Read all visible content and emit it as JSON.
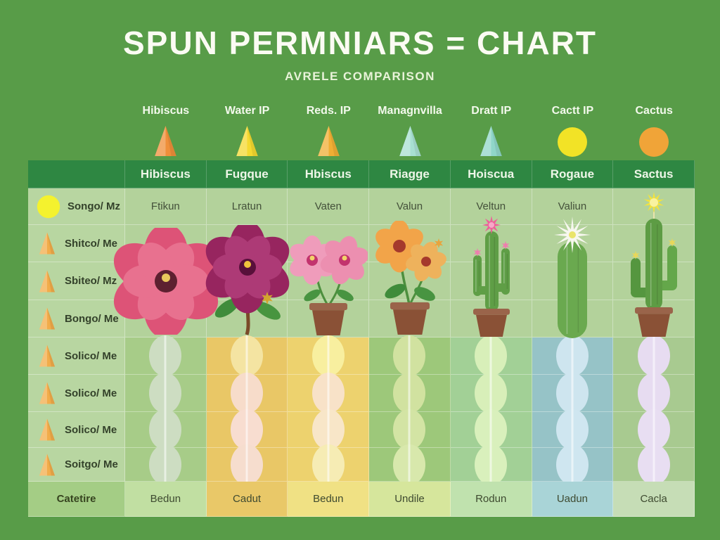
{
  "title": "SPUN PERMNIARS = CHART",
  "subtitle": "AVRELE COMPARISON",
  "footer_label": "Catetire",
  "colors": {
    "background": "#589c48",
    "header_row_green": "#2e8742",
    "cell_light_green": "#b3d29b",
    "label_cell_green": "#b8d6a1",
    "title_white": "#fbfbf3"
  },
  "left_rows": [
    {
      "icon": "yellow-circle-icon",
      "icon_color": "#f4f22e",
      "label": "Songo/ Mz"
    },
    {
      "icon": "orange-cone-icon",
      "icon_color": "#f2ac4a",
      "label": "Shitco/ Me"
    },
    {
      "icon": "orange-cone-icon",
      "icon_color": "#f2ac4a",
      "label": "Sbiteo/ Mz"
    },
    {
      "icon": "orange-cone-icon",
      "icon_color": "#f2ac4a",
      "label": "Bongo/ Me"
    },
    {
      "icon": "orange-cone-icon",
      "icon_color": "#f2ac4a",
      "label": "Solico/ Me"
    },
    {
      "icon": "orange-cone-icon",
      "icon_color": "#f2ac4a",
      "label": "Solico/ Me"
    },
    {
      "icon": "orange-cone-icon",
      "icon_color": "#f2ac4a",
      "label": "Solico/ Me"
    },
    {
      "icon": "orange-cone-icon",
      "icon_color": "#f2ac4a",
      "label": "Soitgo/ Me"
    }
  ],
  "columns": [
    {
      "top_label": "Hibiscus",
      "top_icon": {
        "shape": "cone",
        "color": "#ef8f3a"
      },
      "header": "Hibiscus",
      "value": "Ftikun",
      "plant": "pink-hibiscus-flower",
      "band_bg": "#a7cc88",
      "dots": [
        "#cdddc2",
        "#cdddc2",
        "#cdddc2",
        "#cdddc2"
      ],
      "footer": "Bedun",
      "footer_bg": "#c1dfa2"
    },
    {
      "top_label": "Water IP",
      "top_icon": {
        "shape": "cone",
        "color": "#f4d930"
      },
      "header": "Fugque",
      "value": "Lratun",
      "plant": "magenta-hibiscus-plant",
      "band_bg": "#e9c766",
      "dots": [
        "#f4e4a2",
        "#f7dcca",
        "#f8ddd0",
        "#f6ddce"
      ],
      "footer": "Cadut",
      "footer_bg": "#e9c868"
    },
    {
      "top_label": "Reds. IP",
      "top_icon": {
        "shape": "cone",
        "color": "#f0ae34"
      },
      "header": "Hbiscus",
      "value": "Vaten",
      "plant": "potted-pink-flowers",
      "band_bg": "#edd26e",
      "dots": [
        "#f8ef9f",
        "#f8e2c8",
        "#f8e6c8",
        "#f6ecb4"
      ],
      "footer": "Bedun",
      "footer_bg": "#f0e184"
    },
    {
      "top_label": "Managnvilla",
      "top_icon": {
        "shape": "cone",
        "color": "#a8dfd2"
      },
      "header": "Riagge",
      "value": "Valun",
      "plant": "potted-orange-flowers",
      "band_bg": "#9dc87a",
      "dots": [
        "#d1e2a0",
        "#d1e2a0",
        "#d3e4a4",
        "#d8e8ac"
      ],
      "footer": "Undile",
      "footer_bg": "#d6e69c"
    },
    {
      "top_label": "Dratt IP",
      "top_icon": {
        "shape": "cone",
        "color": "#90d6c9"
      },
      "header": "Hoiscua",
      "value": "Veltun",
      "plant": "potted-cactus-pink-flower",
      "band_bg": "#a2d096",
      "dots": [
        "#d8efb9",
        "#d8efb9",
        "#d9f0bc",
        "#d9f0bc"
      ],
      "footer": "Rodun",
      "footer_bg": "#c0e2ae"
    },
    {
      "top_label": "Cactt IP",
      "top_icon": {
        "shape": "circle",
        "color": "#f2e326"
      },
      "header": "Rogaue",
      "value": "Valiun",
      "plant": "white-flower-cactus",
      "band_bg": "#96c3c7",
      "dots": [
        "#cee5ef",
        "#cee5ef",
        "#cfe6f0",
        "#cfe6f0"
      ],
      "footer": "Uadun",
      "footer_bg": "#a9d4d7"
    },
    {
      "top_label": "Cactus",
      "top_icon": {
        "shape": "circle",
        "color": "#f0a438"
      },
      "header": "Sactus",
      "value": "",
      "plant": "saguaro-cactus-potted-sun",
      "band_bg": "#a8ca90",
      "dots": [
        "#e7dcf1",
        "#e7dcf1",
        "#e8def2",
        "#e8def2"
      ],
      "footer": "Cacla",
      "footer_bg": "#c6ddb6"
    }
  ],
  "chart_data": {
    "type": "table",
    "title": "SPUN PERMNIARS = CHART",
    "subtitle": "AVRELE COMPARISON",
    "top_column_labels": [
      "Hibiscus",
      "Water IP",
      "Reds. IP",
      "Managnvilla",
      "Dratt IP",
      "Cactt IP",
      "Cactus"
    ],
    "top_column_icons": [
      "orange-cone",
      "yellow-cone",
      "amber-cone",
      "mint-cone",
      "teal-cone",
      "yellow-circle",
      "orange-circle"
    ],
    "header_row": [
      "Hibiscus",
      "Fugque",
      "Hbiscus",
      "Riagge",
      "Hoiscua",
      "Rogaue",
      "Sactus"
    ],
    "row_labels": [
      "Songo/ Mz",
      "Shitco/ Me",
      "Sbiteo/ Mz",
      "Bongo/ Me",
      "Solico/ Me",
      "Solico/ Me",
      "Solico/ Me",
      "Soitgo/ Me"
    ],
    "value_row": [
      "Ftikun",
      "Lratun",
      "Vaten",
      "Valun",
      "Veltun",
      "Valiun",
      ""
    ],
    "plant_images": [
      "pink-hibiscus-flower",
      "magenta-hibiscus-plant",
      "potted-pink-flowers",
      "potted-orange-flowers",
      "potted-cactus-pink-flower",
      "white-flower-cactus",
      "saguaro-cactus-potted-sun"
    ],
    "dot_matrix_rows": 4,
    "footer_row_label": "Catetire",
    "footer_row": [
      "Bedun",
      "Cadut",
      "Bedun",
      "Undile",
      "Rodun",
      "Uadun",
      "Cacla"
    ],
    "legend": "none",
    "grid": "on"
  }
}
